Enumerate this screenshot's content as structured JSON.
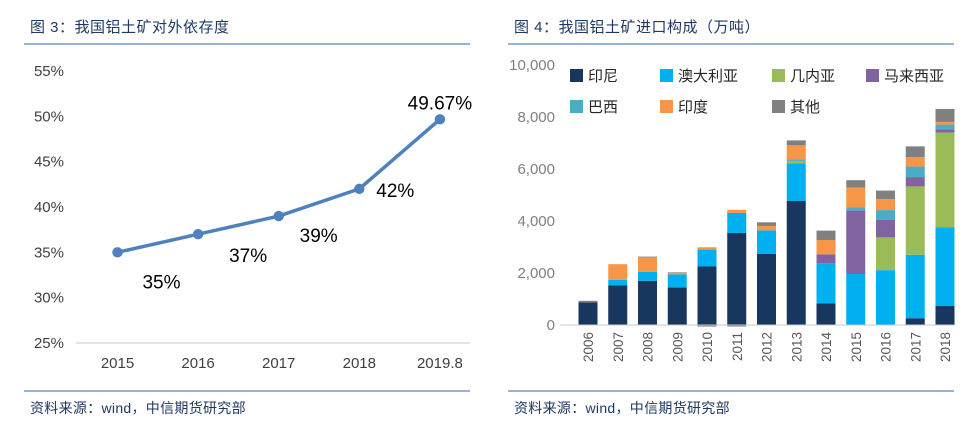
{
  "figures": [
    {
      "title": "图 3：我国铝土矿对外依存度",
      "source": "资料来源：wind，中信期货研究部"
    },
    {
      "title": "图 4：我国铝土矿进口构成（万吨）",
      "source": "资料来源：wind，中信期货研究部"
    }
  ],
  "colors": {
    "title_navy": "#1F3864",
    "rule_blue": "#95B3D7",
    "line_blue": "#4F81BD",
    "axis_line_gray": "#C8C8C8",
    "left_tick_color": "#3F3F3F",
    "right_tick_color": "#7F7F7F",
    "bar_xlabel_color": "#595959",
    "legend_text": "#262626",
    "data_label_color": "#000000"
  },
  "chart_data": [
    {
      "type": "line",
      "title": "图 3：我国铝土矿对外依存度",
      "x": [
        "2015",
        "2016",
        "2017",
        "2018",
        "2019.8"
      ],
      "values": [
        35,
        37,
        39,
        42,
        49.67
      ],
      "point_labels": [
        "35%",
        "37%",
        "39%",
        "42%",
        "49.67%"
      ],
      "ylim": [
        25,
        55
      ],
      "ytick_step": 5,
      "ytick_labels": [
        "25%",
        "30%",
        "35%",
        "40%",
        "45%",
        "50%",
        "55%"
      ],
      "line_color": "#4F81BD",
      "grid": false,
      "legend": "none"
    },
    {
      "type": "bar",
      "stacked": true,
      "title": "图 4：我国铝土矿进口构成（万吨）",
      "categories": [
        "2006",
        "2007",
        "2008",
        "2009",
        "2010",
        "2011",
        "2012",
        "2013",
        "2014",
        "2015",
        "2016",
        "2017",
        "2018"
      ],
      "series": [
        {
          "name": "印尼",
          "color": "#17375E",
          "values": [
            870,
            1530,
            1700,
            1440,
            2250,
            3540,
            2740,
            4770,
            830,
            0,
            0,
            260,
            730
          ]
        },
        {
          "name": "澳大利亚",
          "color": "#00B0F0",
          "values": [
            0,
            210,
            350,
            510,
            650,
            770,
            900,
            1440,
            1550,
            1960,
            2110,
            2440,
            3020
          ]
        },
        {
          "name": "几内亚",
          "color": "#9BBB59",
          "values": [
            0,
            0,
            0,
            0,
            0,
            0,
            0,
            100,
            0,
            0,
            1260,
            2630,
            3650
          ]
        },
        {
          "name": "马来西亚",
          "color": "#8064A2",
          "values": [
            0,
            0,
            0,
            0,
            0,
            0,
            0,
            0,
            340,
            2440,
            670,
            360,
            130
          ]
        },
        {
          "name": "巴西",
          "color": "#4BACC6",
          "values": [
            0,
            0,
            0,
            0,
            0,
            0,
            0,
            60,
            0,
            120,
            380,
            410,
            180
          ]
        },
        {
          "name": "印度",
          "color": "#F79646",
          "values": [
            0,
            600,
            550,
            60,
            90,
            120,
            170,
            540,
            550,
            770,
            420,
            360,
            100
          ]
        },
        {
          "name": "其他",
          "color": "#808080",
          "values": [
            60,
            0,
            30,
            20,
            -60,
            -60,
            140,
            190,
            360,
            280,
            330,
            410,
            500
          ]
        }
      ],
      "ylim": [
        0,
        10000
      ],
      "ytick_labels": [
        "0",
        "2,000",
        "4,000",
        "6,000",
        "8,000",
        "10,000"
      ],
      "grid": false,
      "legend_position": "top"
    }
  ]
}
